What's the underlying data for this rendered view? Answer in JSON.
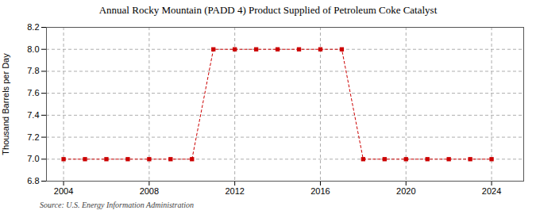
{
  "chart_data": {
    "type": "line",
    "title": "Annual Rocky Mountain (PADD 4) Product Supplied of Petroleum Coke Catalyst",
    "ylabel": "Thousand Barrels per Day",
    "source": "Source: U.S. Energy Information Administration",
    "x": [
      2004,
      2005,
      2006,
      2007,
      2008,
      2009,
      2010,
      2011,
      2012,
      2013,
      2014,
      2015,
      2016,
      2017,
      2018,
      2019,
      2020,
      2021,
      2022,
      2023,
      2024
    ],
    "values": [
      7.0,
      7.0,
      7.0,
      7.0,
      7.0,
      7.0,
      7.0,
      8.0,
      8.0,
      8.0,
      8.0,
      8.0,
      8.0,
      8.0,
      7.0,
      7.0,
      7.0,
      7.0,
      7.0,
      7.0,
      7.0
    ],
    "color": "#cc0000",
    "marker": "square",
    "line_style": "dashed",
    "xlim": [
      2003.2,
      2025.5
    ],
    "xticks": [
      2004,
      2008,
      2012,
      2016,
      2020,
      2024
    ],
    "ylim": [
      6.8,
      8.2
    ],
    "yticks": [
      6.8,
      {
        "value": 7,
        "label": "7.0"
      },
      7.2,
      7.4,
      7.6,
      7.8,
      {
        "value": 8,
        "label": "8.0"
      },
      8.2
    ],
    "grid": true
  }
}
